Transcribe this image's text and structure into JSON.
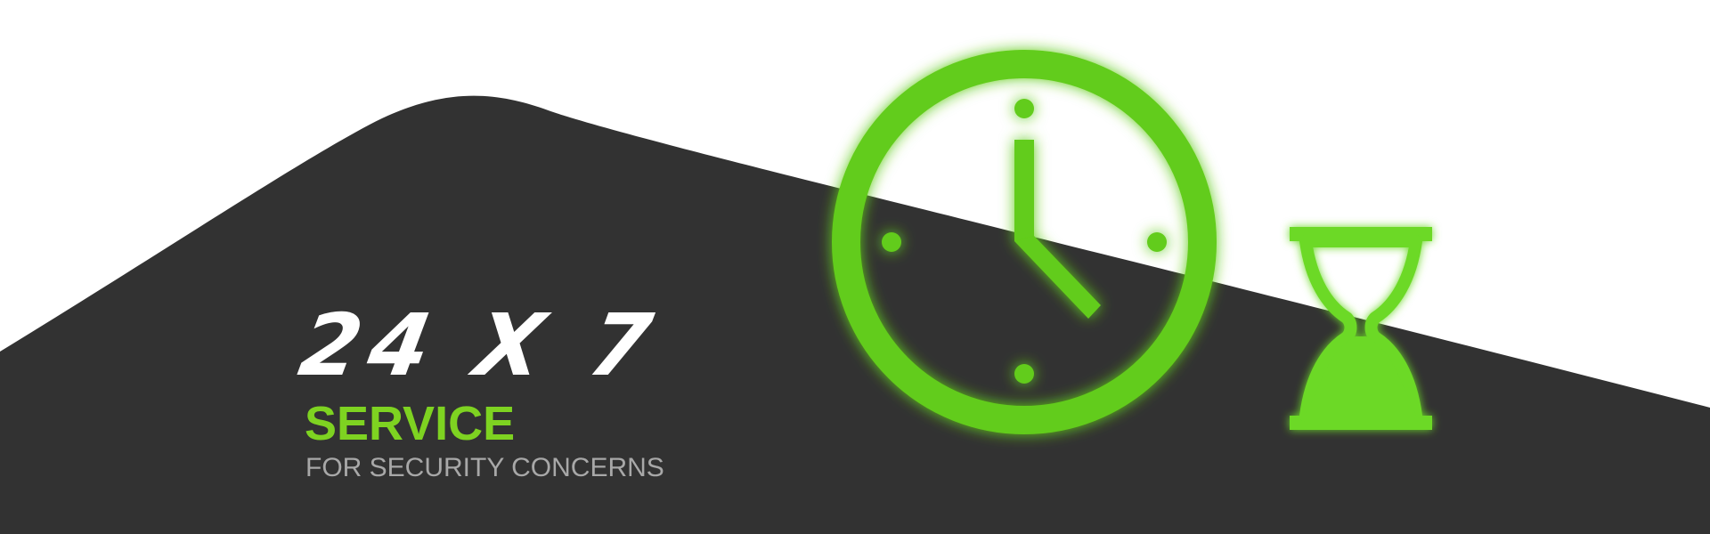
{
  "banner": {
    "headline": "24 X 7",
    "service": "SERVICE",
    "subline": "FOR SECURITY CONCERNS"
  },
  "icons": {
    "clock": "clock-icon",
    "hourglass": "hourglass-icon"
  },
  "colors": {
    "background_light": "#ffffff",
    "background_dark": "#323232",
    "accent_green": "#62cc1a",
    "hourglass_green": "#6cd928",
    "service_green": "#7ed321",
    "subline_gray": "#a8a8a8",
    "headline_white": "#ffffff"
  }
}
